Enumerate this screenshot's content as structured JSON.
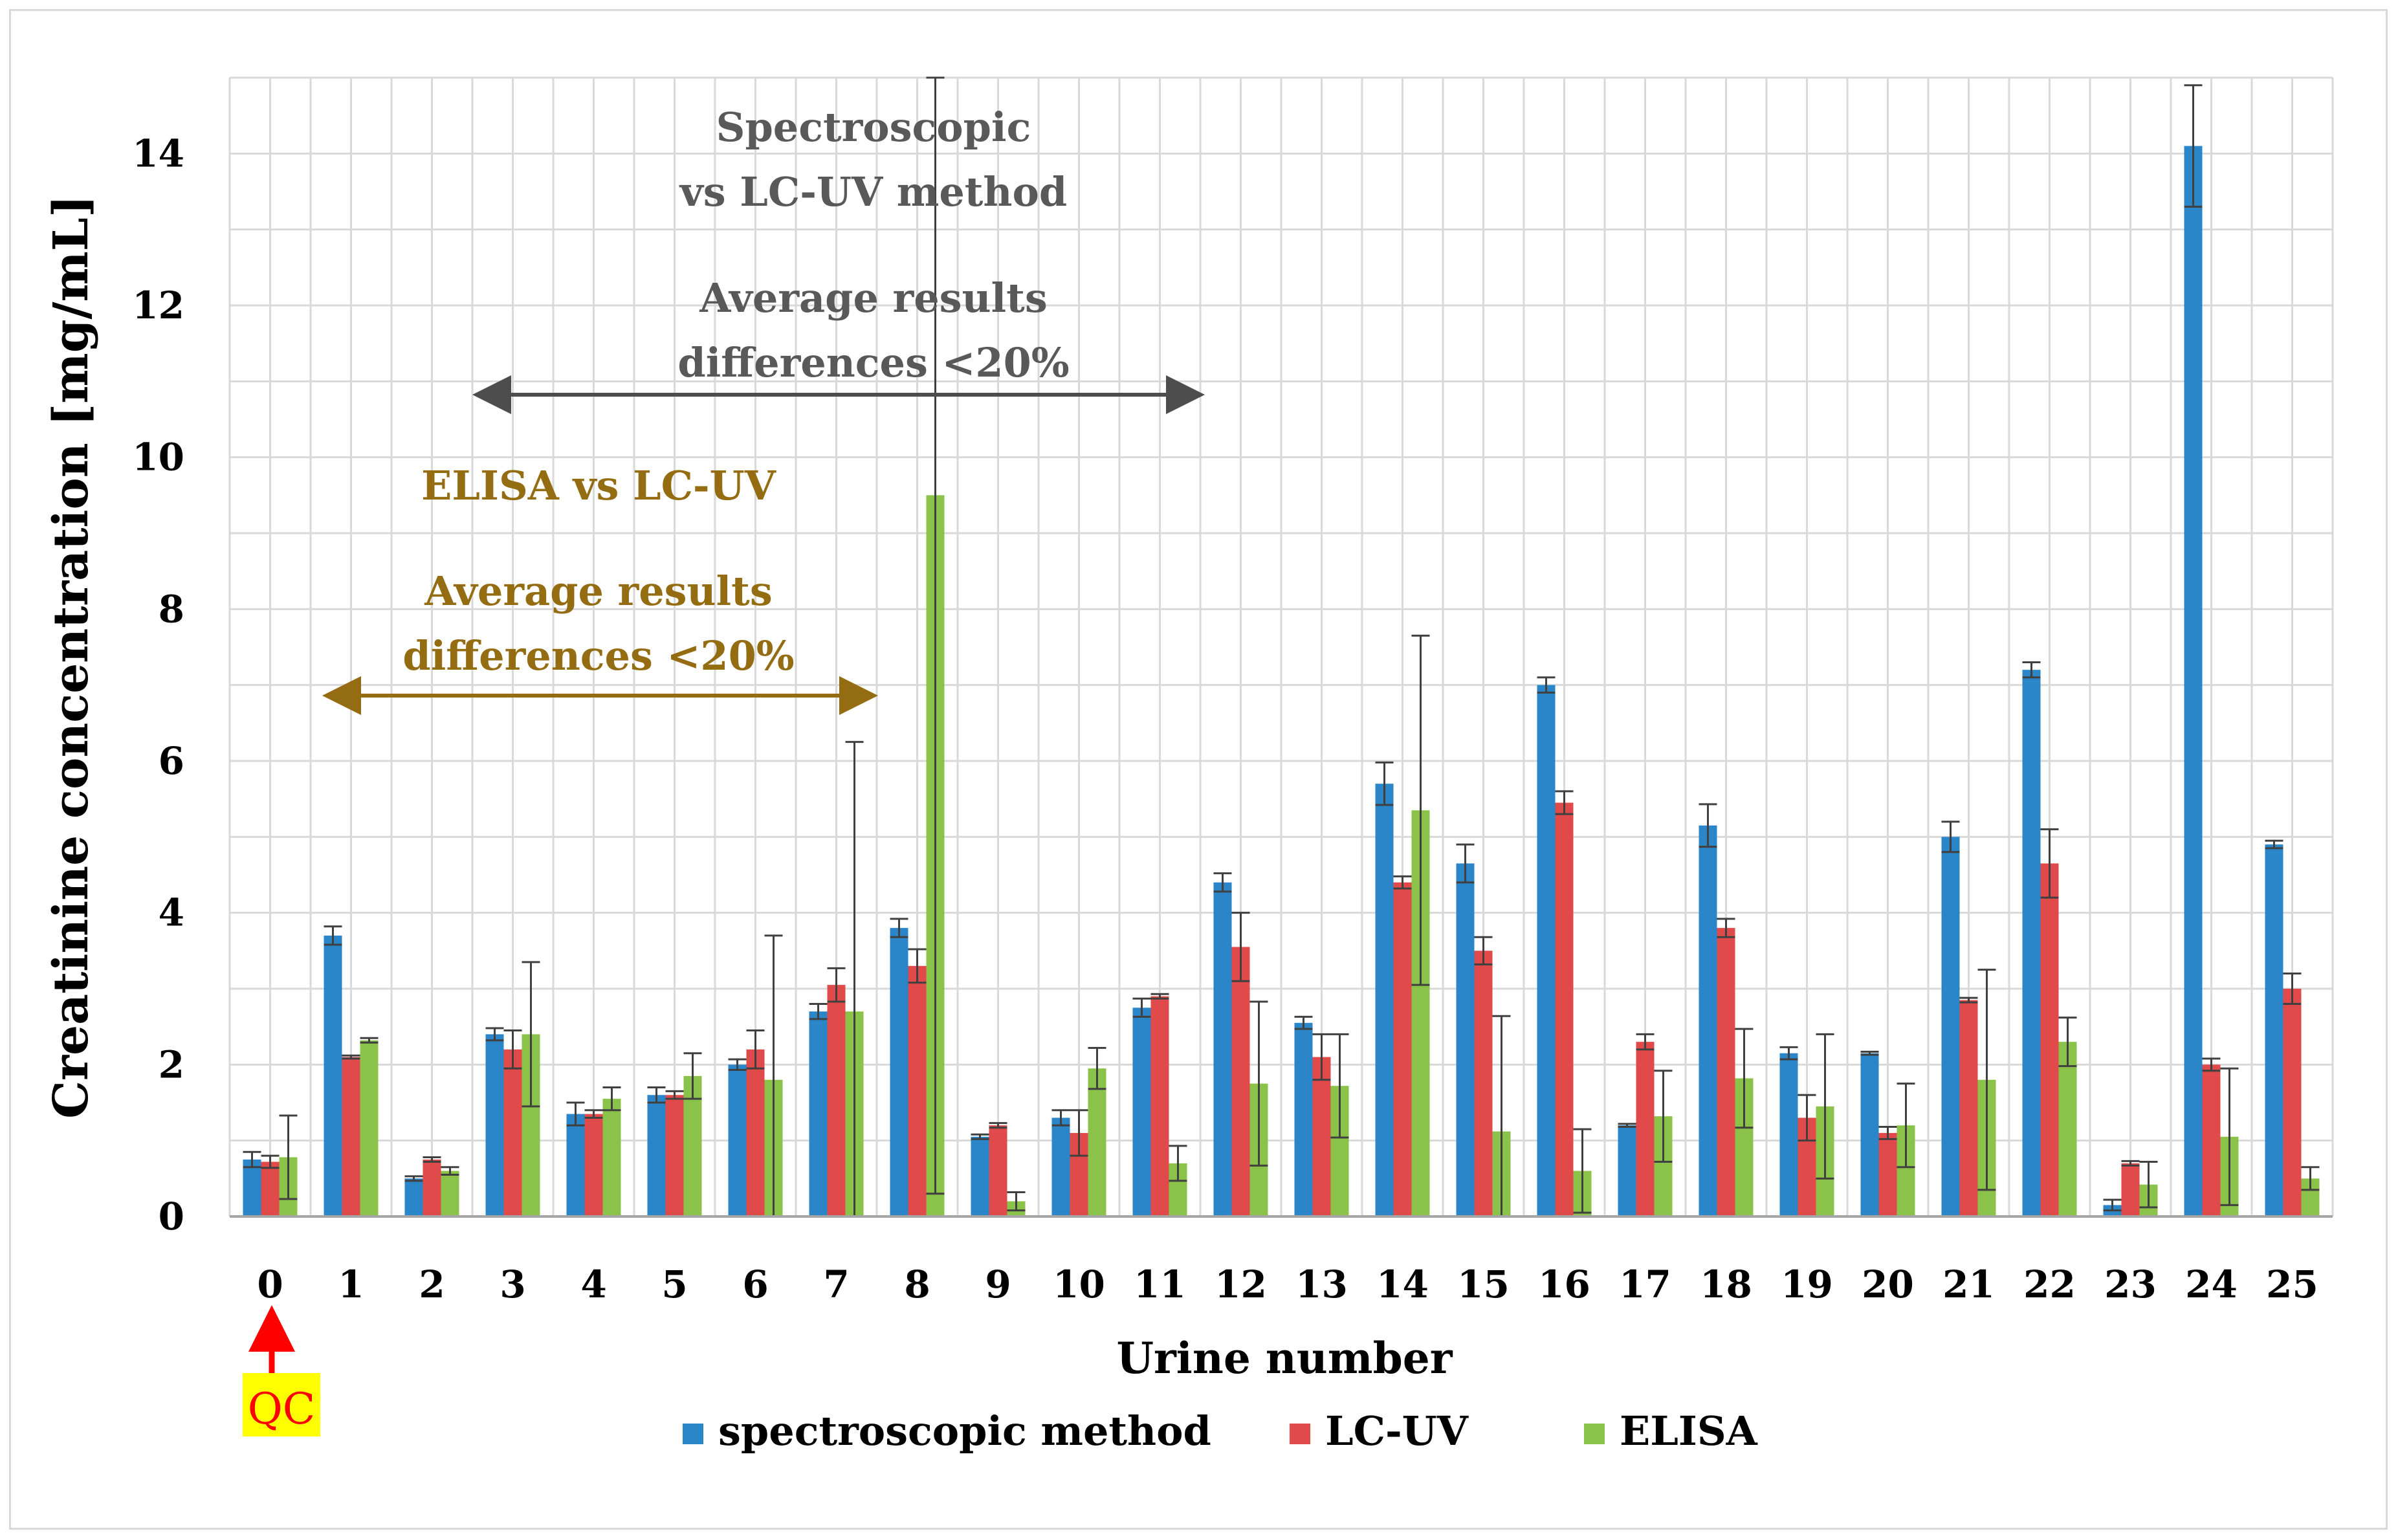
{
  "chart_data": {
    "type": "bar",
    "title": "",
    "xlabel": "Urine number",
    "ylabel": "Creatinine concentration [mg/mL]",
    "ylim": [
      0,
      15
    ],
    "yticks": [
      0,
      2,
      4,
      6,
      8,
      10,
      12,
      14
    ],
    "grid": true,
    "legend_position": "bottom-center",
    "categories": [
      "0",
      "1",
      "2",
      "3",
      "4",
      "5",
      "6",
      "7",
      "8",
      "9",
      "10",
      "11",
      "12",
      "13",
      "14",
      "15",
      "16",
      "17",
      "18",
      "19",
      "20",
      "21",
      "22",
      "23",
      "24",
      "25"
    ],
    "series": [
      {
        "name": "spectroscopic method",
        "color": "#2a86c8",
        "values": [
          0.75,
          3.7,
          0.5,
          2.4,
          1.35,
          1.6,
          2.0,
          2.7,
          3.8,
          1.05,
          1.3,
          2.75,
          4.4,
          2.55,
          5.7,
          4.65,
          7.0,
          1.2,
          5.15,
          2.15,
          2.15,
          5.0,
          7.2,
          0.15,
          14.1,
          4.9
        ],
        "errors": [
          0.1,
          0.12,
          0.03,
          0.08,
          0.15,
          0.1,
          0.07,
          0.1,
          0.12,
          0.03,
          0.1,
          0.12,
          0.12,
          0.08,
          0.28,
          0.25,
          0.1,
          0.02,
          0.28,
          0.08,
          0.02,
          0.2,
          0.1,
          0.07,
          0.8,
          0.05
        ]
      },
      {
        "name": "LC-UV",
        "color": "#e04a4a",
        "values": [
          0.72,
          2.1,
          0.75,
          2.2,
          1.35,
          1.6,
          2.2,
          3.05,
          3.3,
          1.2,
          1.1,
          2.9,
          3.55,
          2.1,
          4.4,
          3.5,
          5.45,
          2.3,
          3.8,
          1.3,
          1.1,
          2.85,
          4.65,
          0.7,
          2.0,
          3.0
        ],
        "errors": [
          0.08,
          0.02,
          0.03,
          0.25,
          0.05,
          0.05,
          0.25,
          0.22,
          0.22,
          0.03,
          0.3,
          0.03,
          0.45,
          0.3,
          0.08,
          0.18,
          0.15,
          0.1,
          0.12,
          0.3,
          0.08,
          0.03,
          0.45,
          0.03,
          0.08,
          0.2
        ]
      },
      {
        "name": "ELISA",
        "color": "#8bc34a",
        "values": [
          0.78,
          2.32,
          0.6,
          2.4,
          1.55,
          1.85,
          1.8,
          2.7,
          9.5,
          0.2,
          1.95,
          0.7,
          1.75,
          1.72,
          5.35,
          1.12,
          0.6,
          1.32,
          1.82,
          1.45,
          1.2,
          1.8,
          2.3,
          0.42,
          1.05,
          0.5
        ],
        "errors": [
          0.55,
          0.03,
          0.05,
          0.95,
          0.15,
          0.3,
          1.9,
          3.55,
          9.2,
          0.12,
          0.27,
          0.23,
          1.08,
          0.68,
          2.3,
          1.52,
          0.55,
          0.6,
          0.65,
          0.95,
          0.55,
          1.45,
          0.32,
          0.3,
          0.9,
          0.15
        ]
      }
    ],
    "annotations": [
      {
        "id": "elisa-title",
        "text": "ELISA vs LC-UV",
        "color": "#946c12"
      },
      {
        "id": "elisa-line1",
        "text": "Average results",
        "color": "#946c12"
      },
      {
        "id": "elisa-line2",
        "text": "differences <20%",
        "color": "#946c12"
      },
      {
        "id": "spec-title1",
        "text": "Spectroscopic",
        "color": "#595959"
      },
      {
        "id": "spec-title2",
        "text": "vs LC-UV method",
        "color": "#595959"
      },
      {
        "id": "spec-line1",
        "text": "Average results",
        "color": "#595959"
      },
      {
        "id": "spec-line2",
        "text": "differences <20%",
        "color": "#595959"
      },
      {
        "id": "qc-label",
        "text": "QC",
        "color": "#ff0000",
        "highlight": "#ffff00"
      }
    ]
  }
}
